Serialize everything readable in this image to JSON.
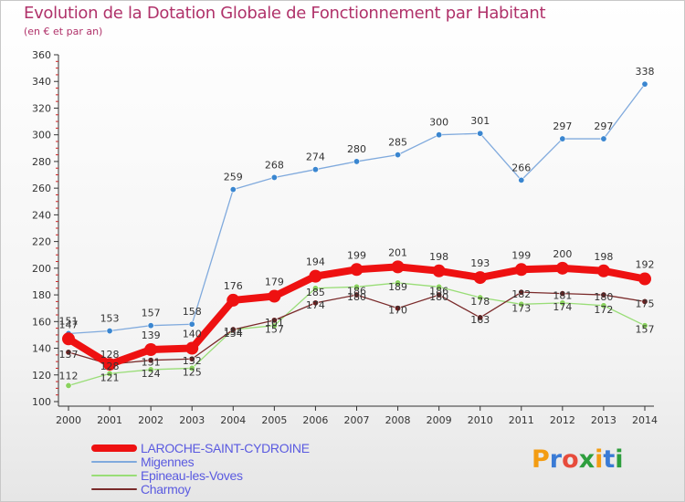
{
  "title": "Evolution de la Dotation Globale de Fonctionnement par Habitant",
  "subtitle": "(en € et par an)",
  "logo": {
    "letters": [
      "P",
      "r",
      "o",
      "x",
      "i",
      "t",
      "i"
    ],
    "colors": [
      "#f39c12",
      "#3a7bd5",
      "#e74c3c",
      "#2e9e3e",
      "#f39c12",
      "#3a7bd5",
      "#2e9e3e"
    ]
  },
  "chart_data": {
    "type": "line",
    "title": "Evolution de la Dotation Globale de Fonctionnement par Habitant",
    "subtitle": "(en € et par an)",
    "x": [
      "2000",
      "2001",
      "2002",
      "2003",
      "2004",
      "2005",
      "2006",
      "2007",
      "2008",
      "2009",
      "2010",
      "2011",
      "2012",
      "2013",
      "2014"
    ],
    "ylim": [
      100,
      360
    ],
    "yticks": [
      100,
      120,
      140,
      160,
      180,
      200,
      220,
      240,
      260,
      280,
      300,
      320,
      340,
      360
    ],
    "grid": false,
    "legend_position": "bottom-left",
    "series": [
      {
        "name": "LAROCHE-SAINT-CYDROINE",
        "color": "#ee1111",
        "marker": "#ee1111",
        "width": 8,
        "values": [
          147,
          128,
          139,
          140,
          176,
          179,
          194,
          199,
          201,
          198,
          193,
          199,
          200,
          198,
          192
        ]
      },
      {
        "name": "Migennes",
        "color": "#80aadd",
        "marker": "#3a86d0",
        "width": 1.3,
        "values": [
          151,
          153,
          157,
          158,
          259,
          268,
          274,
          280,
          285,
          300,
          301,
          266,
          297,
          297,
          338
        ]
      },
      {
        "name": "Epineau-les-Voves",
        "color": "#99dd77",
        "marker": "#8ad25e",
        "width": 1.3,
        "values": [
          112,
          121,
          124,
          125,
          154,
          157,
          185,
          186,
          189,
          186,
          178,
          173,
          174,
          172,
          157
        ]
      },
      {
        "name": "Charmoy",
        "color": "#7a2a2a",
        "marker": "#6e1f1f",
        "width": 1.3,
        "values": [
          137,
          128,
          131,
          132,
          154,
          161,
          174,
          180,
          170,
          180,
          163,
          182,
          181,
          180,
          175
        ]
      }
    ]
  }
}
